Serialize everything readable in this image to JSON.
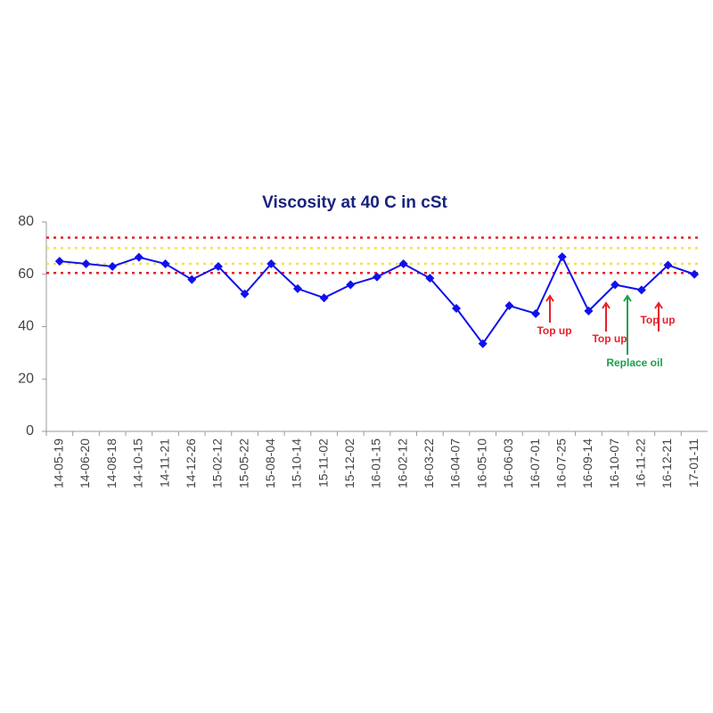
{
  "chart_data": {
    "type": "line",
    "title": "Viscosity at 40 C in cSt",
    "categories": [
      "14-05-19",
      "14-06-20",
      "14-08-18",
      "14-10-15",
      "14-11-21",
      "14-12-26",
      "15-02-12",
      "15-05-22",
      "15-08-04",
      "15-10-14",
      "15-11-02",
      "15-12-02",
      "16-01-15",
      "16-02-12",
      "16-03-22",
      "16-04-07",
      "16-05-10",
      "16-06-03",
      "16-07-01",
      "16-07-25",
      "16-09-14",
      "16-10-07",
      "16-11-22",
      "16-12-21",
      "17-01-11"
    ],
    "series": [
      {
        "color": "#1010ee",
        "values": [
          65,
          64,
          63,
          66.5,
          64,
          58,
          63,
          52.5,
          64,
          54.5,
          51,
          56,
          59,
          64,
          58.5,
          47,
          33.5,
          48,
          45,
          66.7,
          46,
          56,
          54,
          63.5,
          60
        ]
      }
    ],
    "ylim": [
      0,
      80
    ],
    "yticks": [
      0,
      20,
      40,
      60,
      80
    ],
    "reference_lines": [
      {
        "value": 74,
        "color": "#e8202a"
      },
      {
        "value": 70,
        "color": "#f5e04a"
      },
      {
        "value": 64,
        "color": "#f5e04a"
      },
      {
        "value": 60.5,
        "color": "#e8202a"
      }
    ],
    "annotations": [
      {
        "text": "Top up",
        "color": "#e8202a"
      },
      {
        "text": "Top up",
        "color": "#e8202a"
      },
      {
        "text": "Replace oil",
        "color": "#1aa04a"
      },
      {
        "text": "Top up",
        "color": "#e8202a"
      }
    ]
  }
}
